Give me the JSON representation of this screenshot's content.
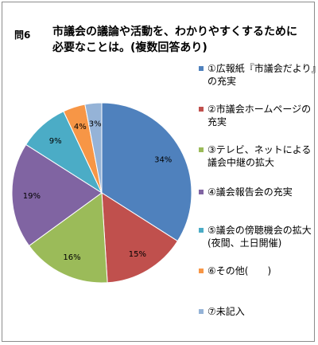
{
  "question": {
    "number": "問6",
    "text": "市議会の議論や活動を、わかりやすくするために必要なことは。(複数回答あり)"
  },
  "chart_data": {
    "type": "pie",
    "title": "市議会の議論や活動を、わかりやすくするために必要なことは。(複数回答あり)",
    "slices": [
      {
        "label": "①広報紙『市議会だより』の充実",
        "value": 34,
        "display": "34%",
        "color": "#4f81bd"
      },
      {
        "label": "②市議会ホームページの充実",
        "value": 15,
        "display": "15%",
        "color": "#c0504d"
      },
      {
        "label": "③テレビ、ネットによる議会中継の拡大",
        "value": 16,
        "display": "16%",
        "color": "#9bbb59"
      },
      {
        "label": "④議会報告会の充実",
        "value": 19,
        "display": "19%",
        "color": "#8064a2"
      },
      {
        "label": "⑤議会の傍聴機会の拡大(夜間、土日開催)",
        "value": 9,
        "display": "9%",
        "color": "#4bacc6"
      },
      {
        "label": "⑥その他(　　)",
        "value": 4,
        "display": "4%",
        "color": "#f79646"
      },
      {
        "label": "⑦未記入",
        "value": 3,
        "display": "3%",
        "color": "#95b3d7"
      }
    ],
    "legend_position": "right"
  }
}
